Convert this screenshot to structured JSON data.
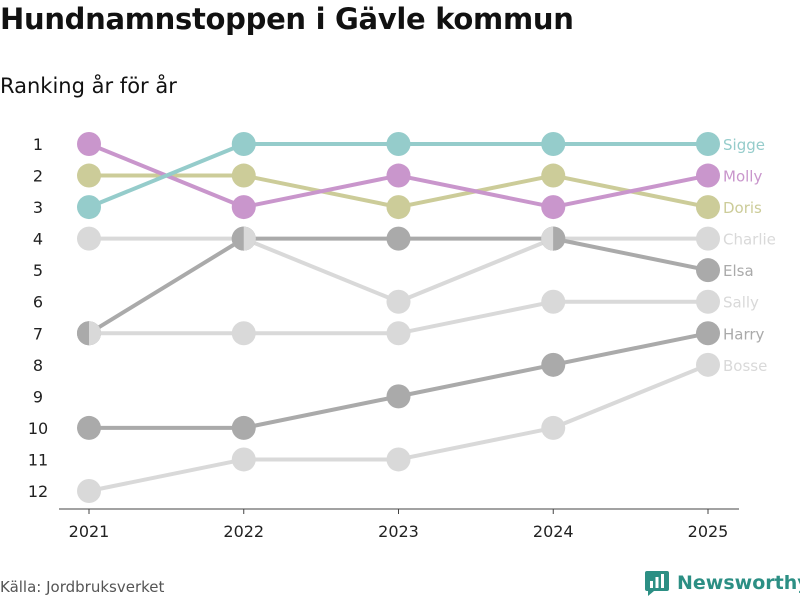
{
  "title": "Hundnamnstoppen i Gävle kommun",
  "subtitle": "Ranking år för år",
  "source": "Källa: Jordbruksverket",
  "brand": "Newsworthy",
  "chart_data": {
    "type": "line",
    "chart_kind": "bump",
    "x": [
      "2021",
      "2022",
      "2023",
      "2024",
      "2025"
    ],
    "ylim": [
      1,
      12
    ],
    "y_inverted": true,
    "y_ticks": [
      "1",
      "2",
      "3",
      "4",
      "5",
      "6",
      "7",
      "8",
      "9",
      "10",
      "11",
      "12"
    ],
    "grid": false,
    "series": [
      {
        "name": "Sigge",
        "values": [
          3,
          1,
          1,
          1,
          1
        ],
        "color": "#95cccb"
      },
      {
        "name": "Molly",
        "values": [
          1,
          3,
          2,
          3,
          2
        ],
        "color": "#c996cc"
      },
      {
        "name": "Doris",
        "values": [
          2,
          2,
          3,
          2,
          3
        ],
        "color": "#cccc99"
      },
      {
        "name": "Charlie",
        "values": [
          4,
          4,
          6,
          4,
          4
        ],
        "color": "#d9d9d9"
      },
      {
        "name": "Elsa",
        "values": [
          7,
          4,
          4,
          4,
          5
        ],
        "color": "#aaaaaa"
      },
      {
        "name": "Sally",
        "values": [
          7,
          7,
          7,
          6,
          6
        ],
        "color": "#d9d9d9"
      },
      {
        "name": "Harry",
        "values": [
          10,
          10,
          9,
          8,
          7
        ],
        "color": "#aaaaaa"
      },
      {
        "name": "Bosse",
        "values": [
          12,
          11,
          11,
          10,
          8
        ],
        "color": "#d9d9d9"
      }
    ]
  }
}
